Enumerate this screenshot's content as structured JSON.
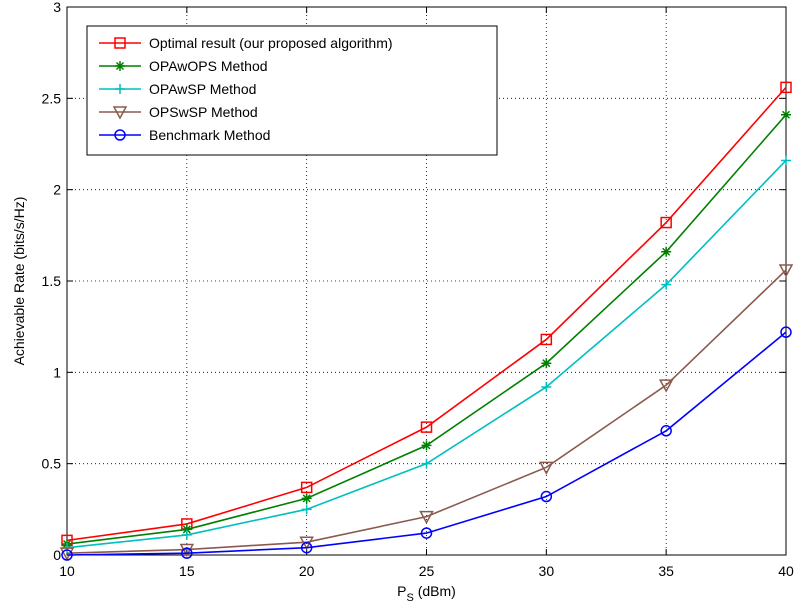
{
  "chart_data": {
    "type": "line",
    "xlabel": "P",
    "xlabel_sub": "S",
    "xlabel_unit": " (dBm)",
    "ylabel": "Achievable Rate (bits/s/Hz)",
    "x": [
      10,
      15,
      20,
      25,
      30,
      35,
      40
    ],
    "xlim": [
      10,
      40
    ],
    "ylim": [
      0,
      3
    ],
    "xticks": [
      10,
      15,
      20,
      25,
      30,
      35,
      40
    ],
    "xtick_labels": [
      "10",
      "15",
      "20",
      "25",
      "30",
      "35",
      "40"
    ],
    "yticks": [
      0,
      0.5,
      1,
      1.5,
      2,
      2.5,
      3
    ],
    "ytick_labels": [
      "0",
      "0.5",
      "1",
      "1.5",
      "2",
      "2.5",
      "3"
    ],
    "grid": true,
    "legend_position": "top-left",
    "series": [
      {
        "name": "Optimal result (our proposed algorithm)",
        "color": "#ff0000",
        "marker": "square",
        "values": [
          0.08,
          0.17,
          0.37,
          0.7,
          1.18,
          1.82,
          2.56
        ]
      },
      {
        "name": "OPAwOPS Method",
        "color": "#008000",
        "marker": "star",
        "values": [
          0.06,
          0.14,
          0.31,
          0.6,
          1.05,
          1.66,
          2.41
        ]
      },
      {
        "name": "OPAwSP Method",
        "color": "#00bfbf",
        "marker": "plus",
        "values": [
          0.04,
          0.11,
          0.25,
          0.5,
          0.92,
          1.48,
          2.16
        ]
      },
      {
        "name": "OPSwSP Method",
        "color": "#8b5a4f",
        "marker": "triangle-down",
        "values": [
          0.01,
          0.03,
          0.07,
          0.21,
          0.48,
          0.93,
          1.56
        ]
      },
      {
        "name": "Benchmark Method",
        "color": "#0000ff",
        "marker": "circle",
        "values": [
          0.0,
          0.01,
          0.04,
          0.12,
          0.32,
          0.68,
          1.22
        ]
      }
    ]
  }
}
